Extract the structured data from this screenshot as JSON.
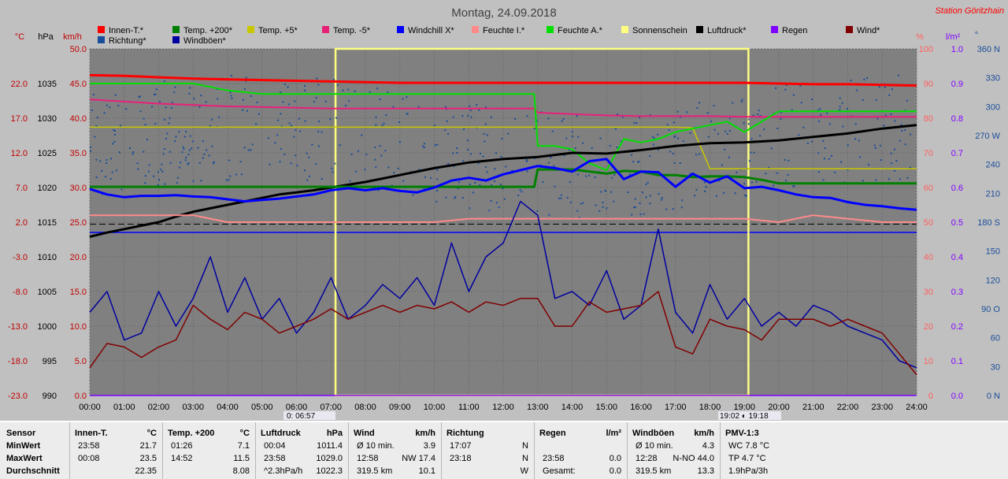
{
  "title": "Montag, 24.09.2018",
  "station": "Station Göritzhain",
  "colors": {
    "innen": "#ff0000",
    "temp200": "#008000",
    "temp5": "#c8c800",
    "tempm5": "#e8207a",
    "windchill": "#0000ff",
    "feuchteI": "#ff8a8a",
    "feuchteA": "#00e000",
    "sonne": "#ffff80",
    "luftdruck": "#000000",
    "regen": "#8000ff",
    "wind": "#800000",
    "richtung": "#1a4e9a",
    "windboeen": "#0000a0"
  },
  "chart_data": {
    "type": "line",
    "x_ticks": [
      "00:00",
      "01:00",
      "02:00",
      "03:00",
      "04:00",
      "05:00",
      "06:00",
      "07:00",
      "08:00",
      "09:00",
      "10:00",
      "11:00",
      "12:00",
      "13:00",
      "14:00",
      "15:00",
      "16:00",
      "17:00",
      "18:00",
      "19:00",
      "20:00",
      "21:00",
      "22:00",
      "23:00",
      "24:00"
    ],
    "x_range_hours": [
      0,
      24
    ],
    "axes": {
      "temp": {
        "unit": "°C",
        "ticks": [
          "22.0",
          "17.0",
          "12.0",
          "7.0",
          "2.0",
          "-3.0",
          "-8.0",
          "-13.0",
          "-18.0",
          "-23.0"
        ],
        "range": [
          -23,
          27
        ]
      },
      "pressure": {
        "unit": "hPa",
        "ticks": [
          "1035",
          "1030",
          "1025",
          "1020",
          "1015",
          "1010",
          "1005",
          "1000",
          "995",
          "990"
        ],
        "range": [
          990,
          1040
        ]
      },
      "wind": {
        "unit": "km/h",
        "ticks": [
          "50.0",
          "45.0",
          "40.0",
          "35.0",
          "30.0",
          "25.0",
          "20.0",
          "15.0",
          "10.0",
          "5.0",
          "0.0"
        ],
        "range": [
          0,
          50
        ]
      },
      "humidity": {
        "unit": "%",
        "ticks": [
          "100",
          "90",
          "80",
          "70",
          "60",
          "50",
          "40",
          "30",
          "20",
          "10",
          "0"
        ],
        "range": [
          0,
          100
        ]
      },
      "rain": {
        "unit": "l/m²",
        "ticks": [
          "1.0",
          "0.9",
          "0.8",
          "0.7",
          "0.6",
          "0.5",
          "0.4",
          "0.3",
          "0.2",
          "0.1",
          "0.0"
        ],
        "range": [
          0,
          1
        ]
      },
      "direction": {
        "unit": "°",
        "ticks": [
          "360 N",
          "330",
          "300",
          "270 W",
          "240",
          "210",
          "180 S",
          "150",
          "120",
          "90 O",
          "60",
          "30",
          "0 N"
        ],
        "range": [
          0,
          360
        ]
      }
    },
    "legend": [
      {
        "name": "Innen-T.*",
        "key": "innen"
      },
      {
        "name": "Temp. +200*",
        "key": "temp200"
      },
      {
        "name": "Temp. +5*",
        "key": "temp5"
      },
      {
        "name": "Temp. -5*",
        "key": "tempm5"
      },
      {
        "name": "Windchill X*",
        "key": "windchill"
      },
      {
        "name": "Feuchte I.*",
        "key": "feuchteI"
      },
      {
        "name": "Feuchte A.*",
        "key": "feuchteA"
      },
      {
        "name": "Sonnenschein",
        "key": "sonne"
      },
      {
        "name": "Luftdruck*",
        "key": "luftdruck"
      },
      {
        "name": "Regen",
        "key": "regen"
      },
      {
        "name": "Wind*",
        "key": "wind"
      },
      {
        "name": "Richtung*",
        "key": "richtung"
      },
      {
        "name": "Windböen*",
        "key": "windboeen"
      }
    ],
    "sunrise": "06:57",
    "sunset": "19:18",
    "sunrise_label": "0: 06:57",
    "sunset_label": "19:02 ◐ 19:18",
    "series": [
      {
        "key": "innen",
        "axis": "temp",
        "x": [
          0,
          1,
          2,
          3,
          4,
          5,
          6,
          7,
          8,
          9,
          10,
          11,
          12,
          13,
          14,
          15,
          16,
          17,
          18,
          19,
          20,
          21,
          22,
          23,
          24
        ],
        "y": [
          23.2,
          23.1,
          22.9,
          22.7,
          22.6,
          22.5,
          22.4,
          22.3,
          22.2,
          22.1,
          22.1,
          22.1,
          22.1,
          22.1,
          22.1,
          22.1,
          22.1,
          22.1,
          22.1,
          22.1,
          22.0,
          21.9,
          21.9,
          21.8,
          21.7
        ]
      },
      {
        "key": "tempm5",
        "axis": "temp",
        "x": [
          0,
          1,
          2,
          3,
          4,
          5,
          6,
          7,
          8,
          9,
          10,
          11,
          12,
          12.9,
          13,
          14,
          15,
          16,
          17,
          18,
          19,
          20,
          21,
          22,
          23,
          24
        ],
        "y": [
          19.7,
          19.4,
          19.1,
          18.9,
          18.7,
          18.6,
          18.5,
          18.4,
          18.4,
          18.4,
          18.4,
          18.4,
          18.4,
          18.4,
          17.8,
          17.6,
          17.4,
          17.3,
          17.3,
          17.3,
          17.2,
          17.2,
          17.2,
          17.2,
          17.2,
          17.2
        ]
      },
      {
        "key": "temp5",
        "axis": "temp",
        "x": [
          0,
          6,
          12,
          13,
          14,
          15,
          16,
          17,
          17.5,
          18,
          19,
          20,
          21,
          22,
          23,
          24
        ],
        "y": [
          15.7,
          15.7,
          15.7,
          15.7,
          15.7,
          15.7,
          15.7,
          15.7,
          15.6,
          9.7,
          9.7,
          9.7,
          9.7,
          9.7,
          9.7,
          9.7
        ]
      },
      {
        "key": "feuchteA",
        "axis": "humidity",
        "x": [
          0,
          1,
          2,
          3,
          4,
          5,
          6,
          7,
          8,
          9,
          10,
          11,
          12,
          12.9,
          13,
          13.5,
          14,
          14.5,
          15,
          15.5,
          16,
          16.5,
          17,
          17.5,
          18,
          18.5,
          19,
          19.5,
          20,
          21,
          22,
          23,
          24
        ],
        "y": [
          90,
          90,
          90,
          90,
          88,
          87,
          87,
          87,
          87,
          87,
          87,
          87,
          87,
          87,
          72,
          72,
          71,
          67,
          65,
          74,
          73,
          74,
          76,
          77,
          78,
          79,
          76,
          79,
          82,
          82,
          82,
          82,
          82
        ]
      },
      {
        "key": "luftdruck",
        "axis": "pressure",
        "x": [
          0,
          0.5,
          1,
          1.5,
          2,
          2.5,
          3,
          3.5,
          4,
          4.5,
          5,
          5.5,
          6,
          6.5,
          7,
          8,
          9,
          10,
          11,
          12,
          13,
          14,
          15,
          16,
          17,
          18,
          19,
          20,
          21,
          22,
          23,
          24
        ],
        "y": [
          1012.9,
          1013.5,
          1014.0,
          1014.5,
          1015.0,
          1015.8,
          1016.5,
          1017.0,
          1017.5,
          1018.0,
          1018.5,
          1019.0,
          1019.3,
          1019.6,
          1020.0,
          1020.8,
          1021.8,
          1022.8,
          1023.6,
          1024.1,
          1024.4,
          1025.0,
          1024.9,
          1025.4,
          1026.0,
          1026.4,
          1026.5,
          1026.8,
          1027.3,
          1027.8,
          1028.5,
          1029.0
        ]
      },
      {
        "key": "temp200",
        "axis": "temp",
        "x": [
          0,
          6,
          12,
          12.9,
          13,
          13.5,
          14,
          14.5,
          15,
          15.5,
          16,
          16.5,
          17,
          17.5,
          18,
          18.5,
          19,
          19.5,
          20,
          21,
          22,
          23,
          24
        ],
        "y": [
          7.1,
          7.1,
          7.1,
          7.1,
          9.6,
          9.6,
          9.6,
          9.3,
          9.0,
          9.4,
          9.3,
          8.8,
          8.8,
          8.5,
          8.6,
          8.6,
          8.5,
          8.1,
          7.6,
          7.6,
          7.6,
          7.6,
          7.6
        ]
      },
      {
        "key": "windchill",
        "axis": "temp",
        "x": [
          0,
          0.5,
          1,
          1.5,
          2,
          2.5,
          3,
          3.5,
          4,
          4.5,
          5,
          5.5,
          6,
          6.5,
          7,
          7.5,
          8,
          8.5,
          9,
          9.5,
          10,
          10.5,
          11,
          11.5,
          12,
          12.5,
          13,
          13.5,
          14,
          14.5,
          15,
          15.5,
          16,
          16.5,
          17,
          17.5,
          18,
          18.5,
          19,
          19.5,
          20,
          20.5,
          21,
          21.5,
          22,
          22.5,
          23,
          23.5,
          24
        ],
        "y": [
          6.8,
          6.0,
          5.6,
          5.8,
          5.8,
          5.9,
          5.7,
          5.6,
          5.3,
          5.0,
          5.2,
          5.4,
          5.7,
          6.0,
          6.6,
          6.9,
          6.6,
          6.9,
          6.5,
          6.3,
          7.0,
          8.0,
          8.4,
          8.0,
          8.9,
          9.5,
          10.1,
          9.8,
          9.3,
          10.8,
          11.1,
          8.2,
          9.3,
          9.2,
          7.1,
          9.0,
          7.7,
          8.6,
          6.9,
          7.1,
          6.6,
          6.0,
          5.6,
          5.5,
          4.9,
          4.5,
          4.3,
          4.0,
          3.8
        ]
      },
      {
        "key": "feuchteI",
        "axis": "humidity",
        "x": [
          0,
          1,
          2,
          3,
          4,
          5,
          6,
          7,
          8,
          9,
          10,
          11,
          12,
          13,
          14,
          15,
          16,
          17,
          18,
          19,
          20,
          21,
          22,
          23,
          24
        ],
        "y": [
          52,
          52,
          52,
          52,
          50,
          50,
          50,
          50,
          50,
          50,
          50,
          51,
          51,
          51,
          51,
          51,
          51,
          51,
          51,
          51,
          50,
          52,
          51,
          50,
          50
        ]
      },
      {
        "key": "windboeen",
        "axis": "wind",
        "x": [
          0,
          0.5,
          1,
          1.5,
          2,
          2.5,
          3,
          3.5,
          4,
          4.5,
          5,
          5.5,
          6,
          6.5,
          7,
          7.5,
          8,
          8.5,
          9,
          9.5,
          10,
          10.5,
          11,
          11.5,
          12,
          12.5,
          13,
          13.5,
          14,
          14.5,
          15,
          15.5,
          16,
          16.5,
          17,
          17.5,
          18,
          18.5,
          19,
          19.5,
          20,
          20.5,
          21,
          21.5,
          22,
          22.5,
          23,
          23.5,
          24
        ],
        "y": [
          12,
          15,
          8,
          9,
          15,
          10,
          14,
          20,
          12,
          17,
          11,
          14,
          9,
          12,
          17,
          11,
          13,
          16,
          14,
          17,
          13,
          22,
          15,
          20,
          22,
          28,
          26,
          14,
          15,
          13,
          18,
          11,
          13,
          24,
          12,
          9,
          16,
          11,
          14,
          10,
          12,
          10,
          13,
          12,
          10,
          9,
          8,
          5,
          4
        ]
      },
      {
        "key": "wind",
        "axis": "wind",
        "x": [
          0,
          0.5,
          1,
          1.5,
          2,
          2.5,
          3,
          3.5,
          4,
          4.5,
          5,
          5.5,
          6,
          6.5,
          7,
          7.5,
          8,
          8.5,
          9,
          9.5,
          10,
          10.5,
          11,
          11.5,
          12,
          12.5,
          13,
          13.5,
          14,
          14.5,
          15,
          15.5,
          16,
          16.5,
          17,
          17.5,
          18,
          18.5,
          19,
          19.5,
          20,
          20.5,
          21,
          21.5,
          22,
          22.5,
          23,
          23.5,
          24
        ],
        "y": [
          4,
          7.5,
          7,
          5.5,
          7,
          8,
          13,
          11,
          9.5,
          12,
          11,
          9,
          10,
          11,
          12.5,
          11,
          12,
          13,
          12,
          13,
          12.5,
          13.5,
          12,
          13.5,
          13,
          14,
          14,
          10,
          10,
          13.5,
          12,
          12.5,
          13,
          15,
          7,
          6,
          11,
          10,
          9.5,
          8,
          11,
          11,
          11,
          10,
          11,
          10,
          9,
          6,
          3
        ]
      },
      {
        "key": "regen",
        "axis": "rain",
        "x": [
          0,
          24
        ],
        "y": [
          0,
          0
        ]
      }
    ]
  },
  "stats": {
    "headers": {
      "sensor": "Sensor",
      "minwert": "MinWert",
      "maxwert": "MaxWert",
      "schnitt": "Durchschnitt"
    },
    "columns": [
      {
        "name": "Innen-T.",
        "unit": "°C",
        "min_time": "23:58",
        "min_val": "21.7",
        "max_time": "00:08",
        "max_val": "23.5",
        "avg_val": "22.35"
      },
      {
        "name": "Temp. +200",
        "unit": "°C",
        "min_time": "01:26",
        "min_val": "7.1",
        "max_time": "14:52",
        "max_val": "11.5",
        "avg_val": "8.08"
      },
      {
        "name": "Luftdruck",
        "unit": "hPa",
        "min_time": "00:04",
        "min_val": "1011.4",
        "max_time": "23:58",
        "max_val": "1029.0",
        "avg_time": "^2.3hPa/h",
        "avg_val": "1022.3"
      },
      {
        "name": "Wind",
        "unit": "km/h",
        "min_time": "Ø 10 min.",
        "min_val": "3.9",
        "max_time": "12:58",
        "max_val": "NW 17.4",
        "avg_time": "319.5 km",
        "avg_val": "10.1"
      },
      {
        "name": "Richtung",
        "unit": "",
        "min_time": "17:07",
        "min_val": "N",
        "max_time": "23:18",
        "max_val": "N",
        "avg_val": "W"
      },
      {
        "name": "Regen",
        "unit": "l/m²",
        "min_time": "",
        "min_val": "",
        "max_time": "23:58",
        "max_val": "0.0",
        "avg_time": "Gesamt:",
        "avg_val": "0.0"
      },
      {
        "name": "Windböen",
        "unit": "km/h",
        "min_time": "Ø 10 min.",
        "min_val": "4.3",
        "max_time": "12:28",
        "max_val": "N-NO 44.0",
        "avg_time": "319.5 km",
        "avg_val": "13.3"
      },
      {
        "name": "PMV-1:3",
        "unit": "",
        "min_time": "WC 7.8 °C",
        "min_val": "",
        "max_time": "TP 4.7 °C",
        "max_val": "",
        "avg_time": "1.9hPa/3h",
        "avg_val": ""
      }
    ]
  }
}
